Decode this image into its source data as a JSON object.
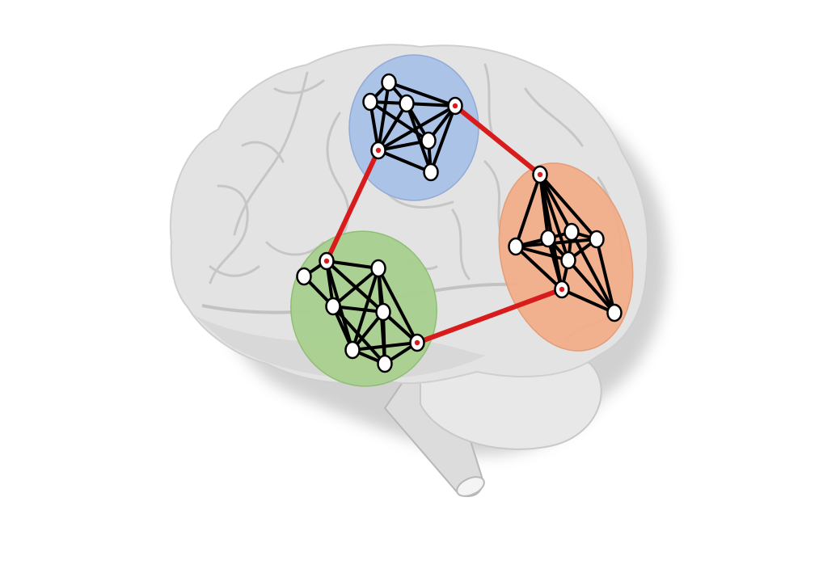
{
  "diagram": {
    "subject": "brain-network-modules",
    "colors": {
      "background": "#ffffff",
      "brain_fill": "#e3e3e3",
      "brain_fold": "#c4c4c4",
      "brainstem": "#dcdcdc",
      "module_blue": "#a9c2e8",
      "module_green": "#a9d08f",
      "module_orange": "#f2ae8a",
      "intra_edge": "#000000",
      "inter_edge": "#d81c1c",
      "node_fill": "#ffffff",
      "node_stroke": "#000000"
    },
    "modules": [
      {
        "id": "blue",
        "color_key": "module_blue",
        "node_count": 7
      },
      {
        "id": "orange",
        "color_key": "module_orange",
        "node_count": 8
      },
      {
        "id": "green",
        "color_key": "module_green",
        "node_count": 8
      }
    ],
    "inter_module_links": [
      {
        "from": "blue",
        "to": "orange"
      },
      {
        "from": "blue",
        "to": "green"
      },
      {
        "from": "green",
        "to": "orange"
      }
    ]
  }
}
